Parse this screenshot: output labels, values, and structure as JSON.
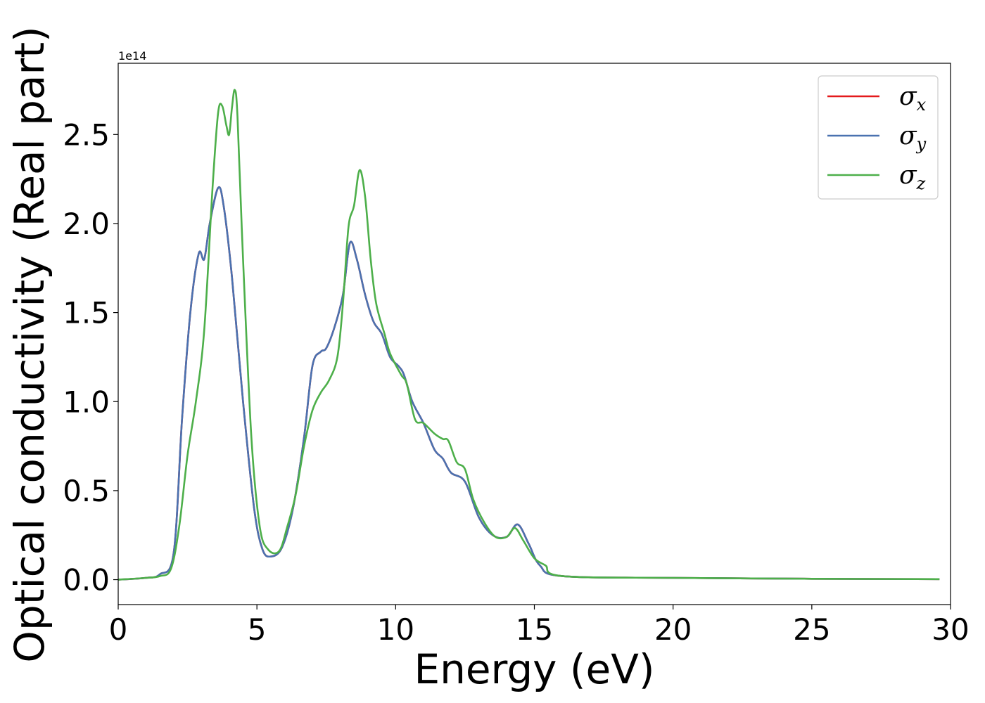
{
  "chart_data": {
    "type": "line",
    "title": "",
    "xlabel": "Energy (eV)",
    "ylabel": "Optical conductivity (Real part)",
    "y_offset_label": "1e14",
    "xlim": [
      0,
      30
    ],
    "ylim": [
      -0.14,
      2.9
    ],
    "x_ticks": [
      0,
      5,
      10,
      15,
      20,
      25,
      30
    ],
    "x_tick_labels": [
      "0",
      "5",
      "10",
      "15",
      "20",
      "25",
      "30"
    ],
    "y_ticks": [
      0.0,
      0.5,
      1.0,
      1.5,
      2.0,
      2.5
    ],
    "y_tick_labels": [
      "0.0",
      "0.5",
      "1.0",
      "1.5",
      "2.0",
      "2.5"
    ],
    "y_unit_multiplier": "1e14",
    "grid": false,
    "legend_position": "top-right",
    "series": [
      {
        "name": "σx",
        "legend_symbol": "σ",
        "legend_subscript": "x",
        "color": "#e41a1c",
        "points": [
          [
            0,
            0
          ],
          [
            1,
            0.01
          ],
          [
            1.5,
            0.03
          ],
          [
            2,
            0.15
          ],
          [
            2.3,
            0.9
          ],
          [
            2.6,
            1.5
          ],
          [
            2.9,
            1.83
          ],
          [
            3.1,
            1.8
          ],
          [
            3.3,
            2.0
          ],
          [
            3.6,
            2.2
          ],
          [
            3.8,
            2.1
          ],
          [
            4.1,
            1.7
          ],
          [
            4.5,
            1.0
          ],
          [
            4.9,
            0.4
          ],
          [
            5.2,
            0.17
          ],
          [
            5.5,
            0.13
          ],
          [
            5.9,
            0.18
          ],
          [
            6.3,
            0.4
          ],
          [
            6.7,
            0.8
          ],
          [
            7.0,
            1.2
          ],
          [
            7.3,
            1.28
          ],
          [
            7.5,
            1.3
          ],
          [
            7.8,
            1.42
          ],
          [
            8.1,
            1.6
          ],
          [
            8.35,
            1.89
          ],
          [
            8.6,
            1.8
          ],
          [
            8.9,
            1.6
          ],
          [
            9.2,
            1.45
          ],
          [
            9.5,
            1.38
          ],
          [
            9.8,
            1.25
          ],
          [
            10.1,
            1.2
          ],
          [
            10.3,
            1.15
          ],
          [
            10.6,
            1.0
          ],
          [
            11.0,
            0.88
          ],
          [
            11.4,
            0.73
          ],
          [
            11.7,
            0.68
          ],
          [
            12.0,
            0.6
          ],
          [
            12.5,
            0.55
          ],
          [
            13.0,
            0.35
          ],
          [
            13.5,
            0.25
          ],
          [
            14.0,
            0.24
          ],
          [
            14.4,
            0.31
          ],
          [
            14.8,
            0.2
          ],
          [
            15.2,
            0.08
          ],
          [
            16.0,
            0.02
          ],
          [
            20.0,
            0.01
          ],
          [
            25.0,
            0.005
          ],
          [
            29.6,
            0.003
          ]
        ]
      },
      {
        "name": "σy",
        "legend_symbol": "σ",
        "legend_subscript": "y",
        "color": "#4a72b0",
        "points": [
          [
            0,
            0
          ],
          [
            1,
            0.01
          ],
          [
            1.5,
            0.03
          ],
          [
            2,
            0.15
          ],
          [
            2.3,
            0.9
          ],
          [
            2.6,
            1.5
          ],
          [
            2.9,
            1.83
          ],
          [
            3.1,
            1.8
          ],
          [
            3.3,
            2.0
          ],
          [
            3.6,
            2.2
          ],
          [
            3.8,
            2.1
          ],
          [
            4.1,
            1.7
          ],
          [
            4.5,
            1.0
          ],
          [
            4.9,
            0.4
          ],
          [
            5.2,
            0.17
          ],
          [
            5.5,
            0.13
          ],
          [
            5.9,
            0.18
          ],
          [
            6.3,
            0.4
          ],
          [
            6.7,
            0.8
          ],
          [
            7.0,
            1.2
          ],
          [
            7.3,
            1.28
          ],
          [
            7.5,
            1.3
          ],
          [
            7.8,
            1.42
          ],
          [
            8.1,
            1.6
          ],
          [
            8.35,
            1.89
          ],
          [
            8.6,
            1.8
          ],
          [
            8.9,
            1.6
          ],
          [
            9.2,
            1.45
          ],
          [
            9.5,
            1.38
          ],
          [
            9.8,
            1.25
          ],
          [
            10.1,
            1.2
          ],
          [
            10.3,
            1.15
          ],
          [
            10.6,
            1.0
          ],
          [
            11.0,
            0.88
          ],
          [
            11.4,
            0.73
          ],
          [
            11.7,
            0.68
          ],
          [
            12.0,
            0.6
          ],
          [
            12.5,
            0.55
          ],
          [
            13.0,
            0.35
          ],
          [
            13.5,
            0.25
          ],
          [
            14.0,
            0.24
          ],
          [
            14.4,
            0.31
          ],
          [
            14.8,
            0.2
          ],
          [
            15.2,
            0.08
          ],
          [
            16.0,
            0.02
          ],
          [
            20.0,
            0.01
          ],
          [
            25.0,
            0.005
          ],
          [
            29.6,
            0.003
          ]
        ]
      },
      {
        "name": "σz",
        "legend_symbol": "σ",
        "legend_subscript": "z",
        "color": "#4daf4a",
        "points": [
          [
            0,
            0
          ],
          [
            1,
            0.01
          ],
          [
            1.5,
            0.02
          ],
          [
            1.9,
            0.06
          ],
          [
            2.2,
            0.3
          ],
          [
            2.5,
            0.7
          ],
          [
            2.8,
            1.0
          ],
          [
            3.1,
            1.4
          ],
          [
            3.4,
            2.2
          ],
          [
            3.6,
            2.62
          ],
          [
            3.75,
            2.66
          ],
          [
            3.9,
            2.55
          ],
          [
            4.0,
            2.5
          ],
          [
            4.1,
            2.65
          ],
          [
            4.2,
            2.75
          ],
          [
            4.3,
            2.6
          ],
          [
            4.5,
            1.8
          ],
          [
            4.8,
            0.8
          ],
          [
            5.1,
            0.3
          ],
          [
            5.4,
            0.17
          ],
          [
            5.8,
            0.16
          ],
          [
            6.1,
            0.3
          ],
          [
            6.4,
            0.48
          ],
          [
            6.7,
            0.75
          ],
          [
            7.0,
            0.95
          ],
          [
            7.3,
            1.05
          ],
          [
            7.6,
            1.12
          ],
          [
            7.9,
            1.25
          ],
          [
            8.1,
            1.55
          ],
          [
            8.3,
            1.98
          ],
          [
            8.5,
            2.1
          ],
          [
            8.7,
            2.3
          ],
          [
            8.9,
            2.15
          ],
          [
            9.1,
            1.8
          ],
          [
            9.3,
            1.55
          ],
          [
            9.6,
            1.38
          ],
          [
            9.8,
            1.27
          ],
          [
            10.2,
            1.15
          ],
          [
            10.4,
            1.1
          ],
          [
            10.7,
            0.9
          ],
          [
            11.0,
            0.88
          ],
          [
            11.4,
            0.82
          ],
          [
            11.7,
            0.79
          ],
          [
            11.9,
            0.78
          ],
          [
            12.2,
            0.66
          ],
          [
            12.5,
            0.62
          ],
          [
            12.8,
            0.45
          ],
          [
            13.2,
            0.32
          ],
          [
            13.6,
            0.24
          ],
          [
            14.0,
            0.24
          ],
          [
            14.3,
            0.29
          ],
          [
            14.6,
            0.22
          ],
          [
            15.0,
            0.12
          ],
          [
            15.4,
            0.08
          ],
          [
            16.0,
            0.02
          ],
          [
            20.0,
            0.01
          ],
          [
            25.0,
            0.005
          ],
          [
            29.6,
            0.003
          ]
        ]
      }
    ]
  }
}
